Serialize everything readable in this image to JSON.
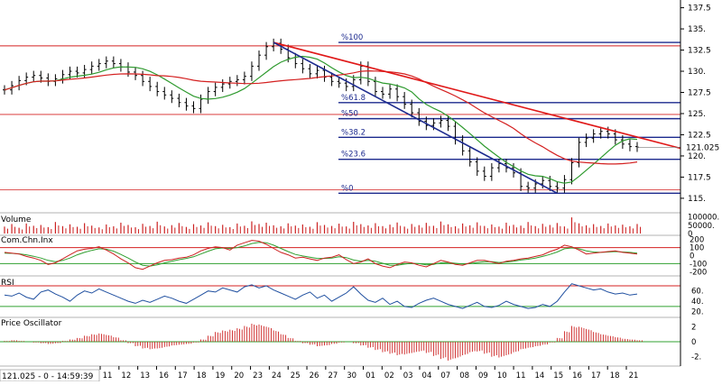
{
  "chart_data": {
    "type": "line",
    "price_axis": {
      "ticks": [
        "137.5",
        "135.",
        "132.5",
        "130.",
        "127.5",
        "125.",
        "122.5",
        "120.",
        "117.5",
        "115."
      ],
      "tick_values": [
        137.5,
        135,
        132.5,
        130,
        127.5,
        125,
        122.5,
        120,
        117.5,
        115
      ],
      "current_value": 121.025,
      "current_label": "121.025"
    },
    "fibonacci": {
      "levels": [
        {
          "label": "%100",
          "value": 133.4
        },
        {
          "label": "%61.8",
          "value": 126.3
        },
        {
          "label": "%50",
          "value": 124.4
        },
        {
          "label": "%38.2",
          "value": 122.2
        },
        {
          "label": "%23.6",
          "value": 119.6
        },
        {
          "label": "%0",
          "value": 115.6
        }
      ]
    },
    "close_series": [
      127.8,
      128.3,
      128.9,
      129.3,
      129.5,
      129.2,
      128.8,
      129.1,
      129.6,
      130.0,
      129.8,
      130.2,
      130.6,
      130.9,
      131.2,
      130.9,
      130.5,
      129.9,
      129.5,
      128.8,
      128.2,
      127.6,
      127.2,
      126.8,
      126.3,
      125.9,
      125.6,
      126.7,
      127.6,
      128.1,
      128.5,
      128.8,
      129.0,
      129.4,
      130.6,
      131.9,
      132.9,
      133.3,
      132.6,
      131.6,
      130.9,
      130.3,
      129.7,
      130.1,
      129.3,
      128.8,
      128.6,
      128.2,
      129.0,
      130.6,
      128.8,
      127.6,
      127.3,
      127.9,
      127.0,
      126.1,
      125.1,
      124.1,
      123.6,
      123.9,
      124.2,
      123.5,
      121.9,
      120.6,
      119.3,
      118.2,
      117.6,
      118.6,
      119.1,
      118.6,
      118.0,
      116.4,
      116.2,
      116.7,
      117.1,
      116.4,
      116.2,
      117.2,
      119.2,
      121.6,
      122.1,
      122.6,
      122.9,
      122.6,
      121.9,
      121.4,
      121.1,
      121.03
    ],
    "volume_axis": {
      "ticks": [
        "100000.",
        "50000.",
        "0"
      ],
      "tick_values": [
        100000,
        50000,
        0
      ]
    },
    "volume": [
      42000,
      58000,
      35000,
      61000,
      47000,
      52000,
      39000,
      70000,
      45000,
      56000,
      41000,
      63000,
      48000,
      37000,
      55000,
      44000,
      66000,
      52000,
      38000,
      59000,
      46000,
      72000,
      43000,
      51000,
      64000,
      40000,
      57000,
      49000,
      68000,
      45000,
      53000,
      39000,
      61000,
      47000,
      74000,
      58000,
      66000,
      50000,
      44000,
      62000,
      48000,
      55000,
      41000,
      69000,
      52000,
      46000,
      60000,
      43000,
      71000,
      57000,
      49000,
      63000,
      45000,
      54000,
      67000,
      42000,
      58000,
      51000,
      65000,
      47000,
      73000,
      56000,
      44000,
      61000,
      50000,
      68000,
      46000,
      55000,
      42000,
      66000,
      53000,
      48000,
      70000,
      45000,
      59000,
      52000,
      64000,
      43000,
      98000,
      62000,
      50000,
      57000,
      46000,
      61000,
      49000,
      54000,
      44000,
      58000
    ],
    "cci_axis": {
      "ticks": [
        "200",
        "100",
        "0",
        "-100",
        "-200"
      ],
      "tick_values": [
        200,
        100,
        0,
        -100,
        -200
      ]
    },
    "cci": [
      40,
      30,
      20,
      -10,
      -30,
      -60,
      -110,
      -90,
      -40,
      10,
      60,
      80,
      90,
      110,
      70,
      20,
      -40,
      -90,
      -150,
      -170,
      -130,
      -90,
      -60,
      -50,
      -30,
      -20,
      10,
      60,
      90,
      110,
      100,
      70,
      130,
      160,
      190,
      180,
      140,
      90,
      40,
      10,
      -30,
      -20,
      -40,
      -60,
      -30,
      -20,
      10,
      -50,
      -100,
      -80,
      -40,
      -100,
      -130,
      -150,
      -110,
      -80,
      -90,
      -120,
      -140,
      -100,
      -60,
      -80,
      -110,
      -120,
      -90,
      -60,
      -60,
      -80,
      -100,
      -70,
      -60,
      -40,
      -30,
      -10,
      10,
      50,
      80,
      130,
      110,
      70,
      20,
      30,
      40,
      50,
      60,
      40,
      30,
      20
    ],
    "cci_signal": [
      30,
      28,
      22,
      10,
      -8,
      -30,
      -60,
      -75,
      -60,
      -30,
      10,
      40,
      65,
      85,
      80,
      55,
      15,
      -30,
      -80,
      -120,
      -130,
      -115,
      -90,
      -70,
      -50,
      -35,
      -15,
      20,
      55,
      85,
      95,
      90,
      100,
      120,
      150,
      165,
      160,
      130,
      90,
      50,
      15,
      -5,
      -20,
      -35,
      -35,
      -30,
      -15,
      -25,
      -55,
      -70,
      -60,
      -70,
      -95,
      -120,
      -120,
      -105,
      -95,
      -100,
      -115,
      -110,
      -90,
      -85,
      -95,
      -105,
      -100,
      -85,
      -75,
      -75,
      -85,
      -80,
      -70,
      -55,
      -45,
      -30,
      -10,
      15,
      45,
      85,
      95,
      85,
      60,
      45,
      40,
      45,
      50,
      45,
      40,
      30
    ],
    "rsi_axis": {
      "ticks": [
        "60.",
        "40.",
        "20."
      ],
      "tick_values": [
        60,
        40,
        20
      ]
    },
    "rsi": [
      52,
      50,
      56,
      48,
      44,
      58,
      62,
      54,
      48,
      40,
      52,
      60,
      56,
      64,
      58,
      52,
      46,
      40,
      36,
      42,
      38,
      44,
      50,
      46,
      40,
      36,
      44,
      52,
      60,
      58,
      66,
      62,
      58,
      68,
      72,
      66,
      70,
      62,
      56,
      50,
      44,
      52,
      58,
      46,
      52,
      40,
      48,
      56,
      68,
      54,
      42,
      38,
      46,
      34,
      40,
      30,
      28,
      36,
      42,
      46,
      40,
      34,
      30,
      26,
      32,
      38,
      30,
      28,
      32,
      40,
      34,
      30,
      26,
      28,
      34,
      30,
      40,
      58,
      74,
      70,
      66,
      62,
      64,
      58,
      54,
      56,
      52,
      54
    ],
    "osc_axis": {
      "ticks": [
        "2",
        "0",
        "-2."
      ],
      "tick_values": [
        2,
        0,
        -2
      ]
    },
    "price_oscillator": [
      0.1,
      0.2,
      0.1,
      0,
      -0.1,
      -0.2,
      -0.3,
      -0.2,
      0.1,
      0.3,
      0.5,
      0.8,
      1.0,
      1.1,
      0.9,
      0.6,
      0.2,
      -0.2,
      -0.6,
      -0.9,
      -1.0,
      -0.9,
      -0.7,
      -0.5,
      -0.4,
      -0.3,
      -0.1,
      0.3,
      0.8,
      1.3,
      1.5,
      1.6,
      1.8,
      2.1,
      2.4,
      2.3,
      2.0,
      1.5,
      1.0,
      0.5,
      0.1,
      -0.2,
      -0.4,
      -0.6,
      -0.5,
      -0.3,
      -0.1,
      0,
      -0.2,
      -0.5,
      -0.8,
      -1.1,
      -1.4,
      -1.6,
      -1.8,
      -1.7,
      -1.5,
      -1.3,
      -1.5,
      -1.9,
      -2.3,
      -2.5,
      -2.2,
      -1.8,
      -1.4,
      -1.3,
      -1.6,
      -2.0,
      -2.1,
      -1.8,
      -1.4,
      -1.0,
      -0.8,
      -0.6,
      -0.4,
      -0.1,
      0.5,
      1.4,
      2.1,
      2.0,
      1.7,
      1.3,
      1.0,
      0.8,
      0.6,
      0.4,
      0.3,
      0.2
    ],
    "x_axis": {
      "labels": [
        "11",
        "12",
        "13",
        "16",
        "17",
        "18",
        "19",
        "20",
        "23",
        "24",
        "25",
        "26",
        "27",
        "30",
        "01",
        "02",
        "03",
        "04",
        "07",
        "08",
        "09",
        "10",
        "11",
        "14",
        "15",
        "16",
        "17",
        "18",
        "21"
      ]
    }
  },
  "panels": {
    "volume_title": "Volume",
    "cci_title": "Com.Chn.Inx",
    "rsi_title": "RSI",
    "osc_title": "Price Oscillator"
  },
  "status_label": "121.025 - 0 - 14:59:39",
  "colors": {
    "background": "#ffffff",
    "price_bar": "#000000",
    "ma_short": "#2e9a2e",
    "ma_long": "#d42020",
    "trend_red": "#e01818",
    "trend_blue": "#1c2a8e",
    "fib_line": "#1c2a8e",
    "volume_bar": "#cc2222",
    "rsi_line": "#2050a0",
    "cci_line": "#cc2020",
    "cci_signal": "#30a030",
    "osc_bar": "#cc2020",
    "guide_red": "#d42020",
    "guide_green": "#30a030",
    "axis": "#000000"
  }
}
